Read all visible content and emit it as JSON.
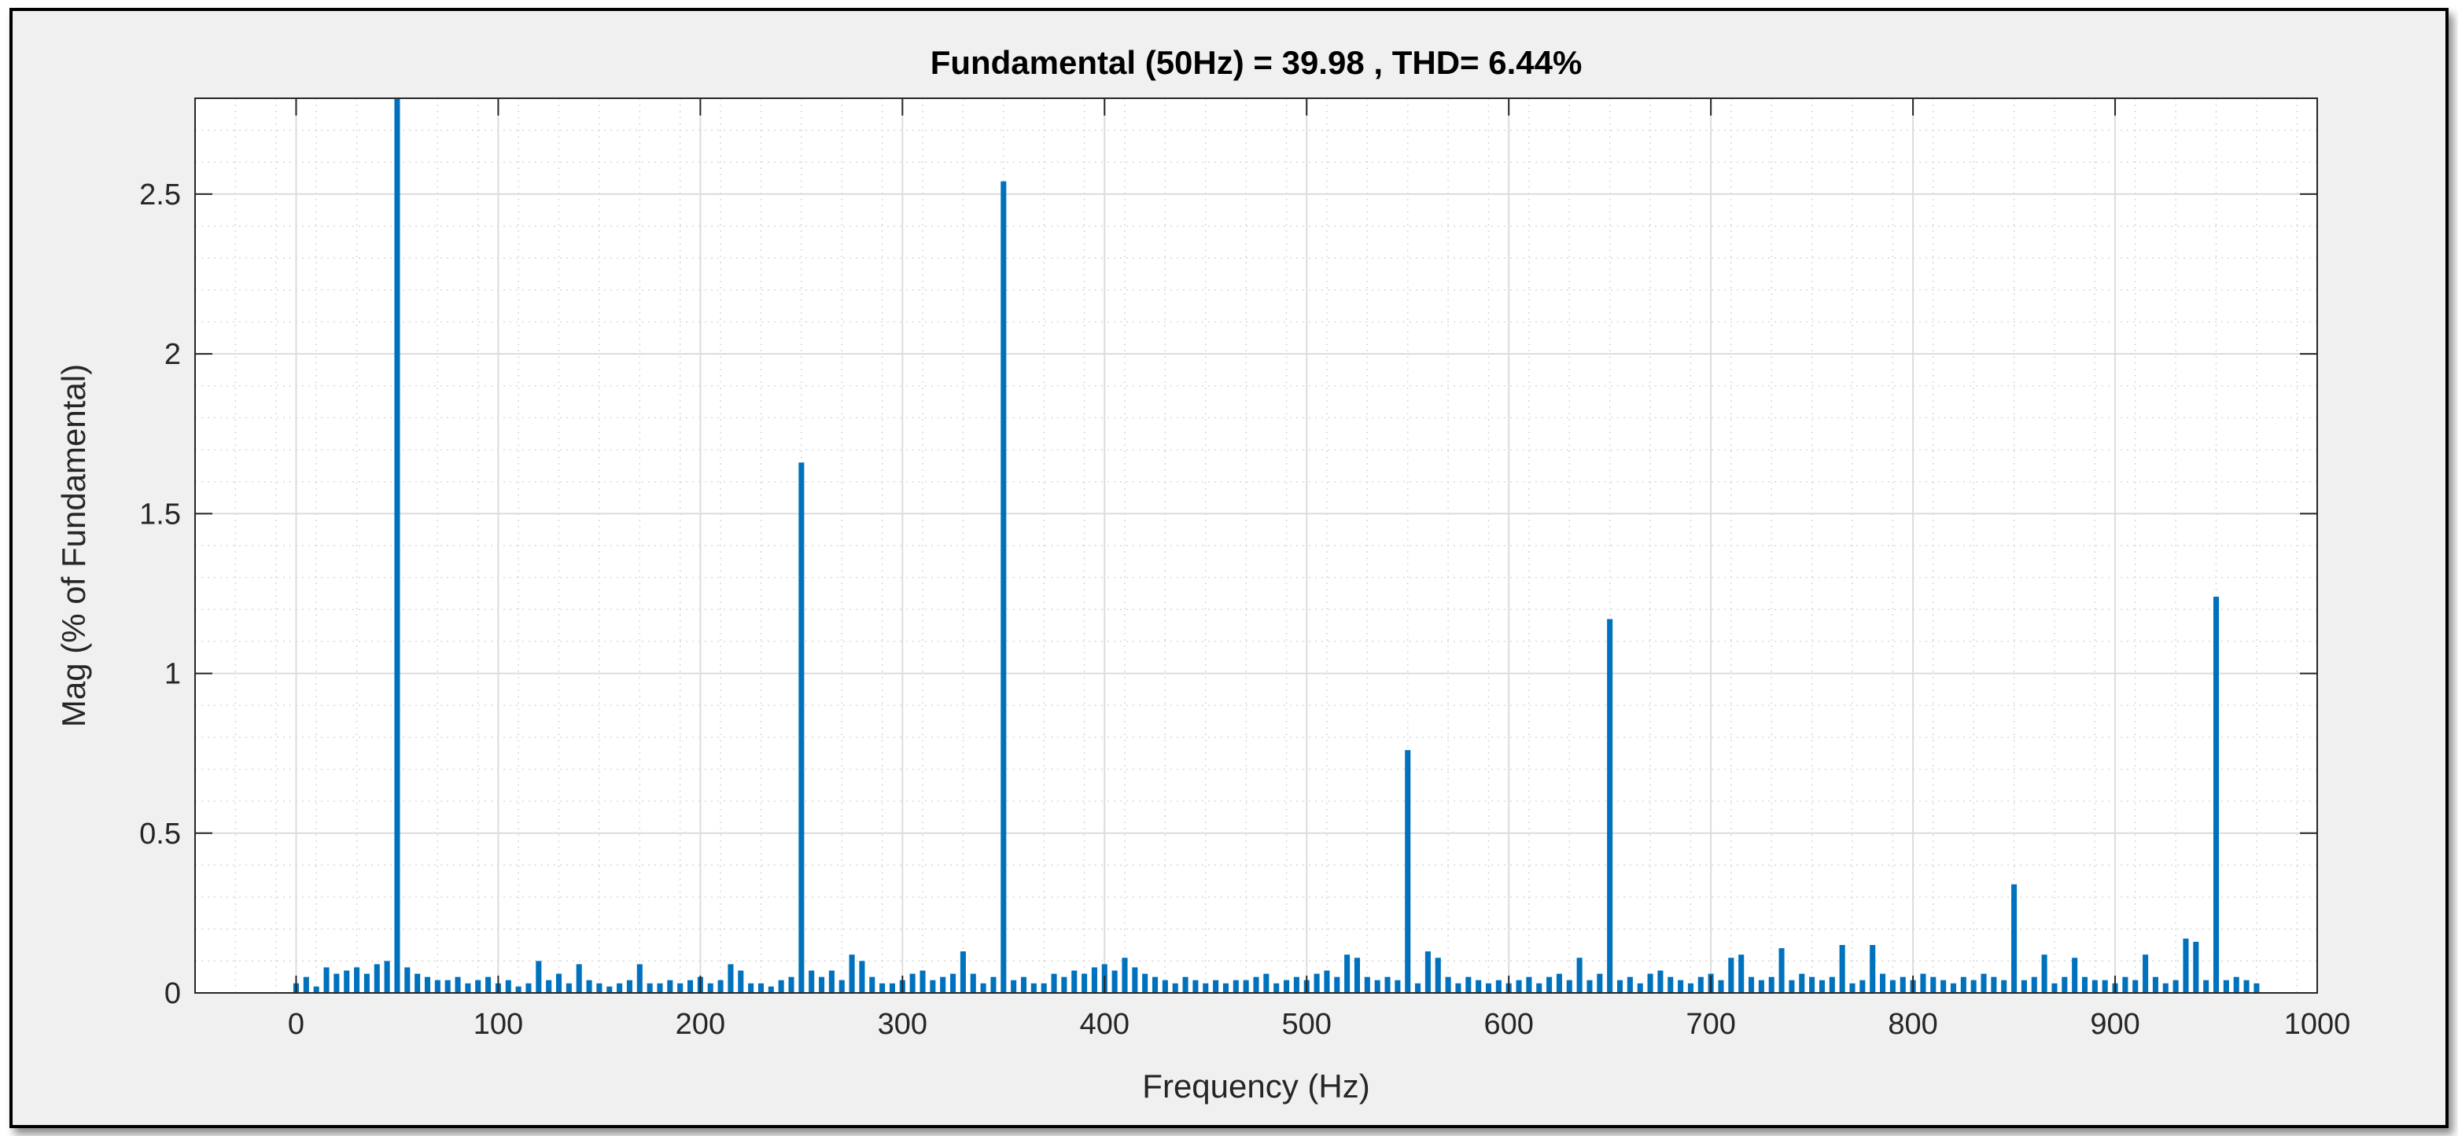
{
  "chart_data": {
    "type": "bar",
    "title": "Fundamental (50Hz) = 39.98 , THD= 6.44%",
    "xlabel": "Frequency (Hz)",
    "ylabel": "Mag (% of Fundamental)",
    "xlim": [
      -50,
      1000
    ],
    "ylim": [
      0,
      2.8
    ],
    "x_ticks": [
      0,
      100,
      200,
      300,
      400,
      500,
      600,
      700,
      800,
      900,
      1000
    ],
    "y_ticks": [
      0,
      0.5,
      1,
      1.5,
      2,
      2.5
    ],
    "x_tick_labels": [
      "0",
      "100",
      "200",
      "300",
      "400",
      "500",
      "600",
      "700",
      "800",
      "900",
      "1000"
    ],
    "y_tick_labels": [
      "0",
      "0.5",
      "1",
      "1.5",
      "2",
      "2.5"
    ],
    "grid": true,
    "minor_grid": true,
    "bar_color": "#0072BD",
    "series": [
      {
        "bin_width_hz": 5,
        "x_start": 0,
        "values": [
          0.03,
          0.05,
          0.02,
          0.08,
          0.06,
          0.07,
          0.08,
          0.06,
          0.09,
          0.07,
          0.1,
          0.08,
          0.06,
          0.05,
          0.04,
          0.04,
          0.05,
          0.03,
          0.04,
          0.05,
          0.03,
          0.04,
          0.02,
          0.03,
          0.03,
          0.04,
          0.06,
          0.03,
          0.02,
          0.04,
          0.03,
          0.02,
          0.03,
          0.04,
          0.09,
          0.03,
          0.03,
          0.04,
          0.03,
          0.04,
          0.05,
          0.03,
          0.04,
          0.09,
          0.07,
          0.03,
          0.03,
          0.02,
          0.04,
          0.05,
          0.06,
          0.07,
          0.05,
          0.07,
          0.04,
          0.05,
          0.05,
          0.05,
          0.03,
          0.03,
          0.04,
          0.06,
          0.07,
          0.04,
          0.05,
          0.06,
          0.07,
          0.06,
          0.03,
          0.05,
          0.04,
          0.04,
          0.05,
          0.03,
          0.03,
          0.06,
          0.05,
          0.07,
          0.06,
          0.08,
          0.09,
          0.07,
          0.11,
          0.08,
          0.06,
          0.05,
          0.04,
          0.03,
          0.05,
          0.04,
          0.03,
          0.04,
          0.03,
          0.04,
          0.04,
          0.05,
          0.06,
          0.03,
          0.04,
          0.05,
          0.04,
          0.06,
          0.07,
          0.05,
          0.04,
          0.03,
          0.05,
          0.04,
          0.05,
          0.04,
          0.04,
          0.03,
          0.05,
          0.04,
          0.05,
          0.03,
          0.05,
          0.04,
          0.03,
          0.04,
          0.03,
          0.04,
          0.05,
          0.03,
          0.05,
          0.06,
          0.04,
          0.05,
          0.04,
          0.06,
          0.03,
          0.04,
          0.05,
          0.03,
          0.06,
          0.07,
          0.05,
          0.04,
          0.03,
          0.05,
          0.06,
          0.04,
          0.05,
          0.06,
          0.05,
          0.04,
          0.05,
          0.03,
          0.04,
          0.06,
          0.05,
          0.04,
          0.05,
          0.05,
          0.03,
          0.04,
          0.05,
          0.06,
          0.04,
          0.05,
          0.04,
          0.06,
          0.05,
          0.04,
          0.03,
          0.05,
          0.04,
          0.06,
          0.05,
          0.04,
          0.06,
          0.04,
          0.05,
          0.04,
          0.03,
          0.05,
          0.04,
          0.05,
          0.04,
          0.04,
          0.03,
          0.05,
          0.04,
          0.04,
          0.05,
          0.03,
          0.04,
          0.06,
          0.05,
          0.04,
          0.05,
          0.04,
          0.05,
          0.04,
          0.03
        ],
        "peaks": {
          "50": 2.8,
          "250": 1.66,
          "350": 2.54,
          "550": 0.76,
          "650": 1.17,
          "850": 0.34,
          "950": 1.24,
          "40": 0.09,
          "45": 0.1,
          "120": 0.1,
          "140": 0.09,
          "275": 0.12,
          "280": 0.1,
          "330": 0.13,
          "520": 0.12,
          "525": 0.11,
          "560": 0.13,
          "565": 0.11,
          "635": 0.11,
          "710": 0.11,
          "715": 0.12,
          "735": 0.14,
          "765": 0.15,
          "780": 0.15,
          "865": 0.12,
          "880": 0.11,
          "915": 0.12,
          "935": 0.17,
          "940": 0.16
        }
      }
    ]
  }
}
